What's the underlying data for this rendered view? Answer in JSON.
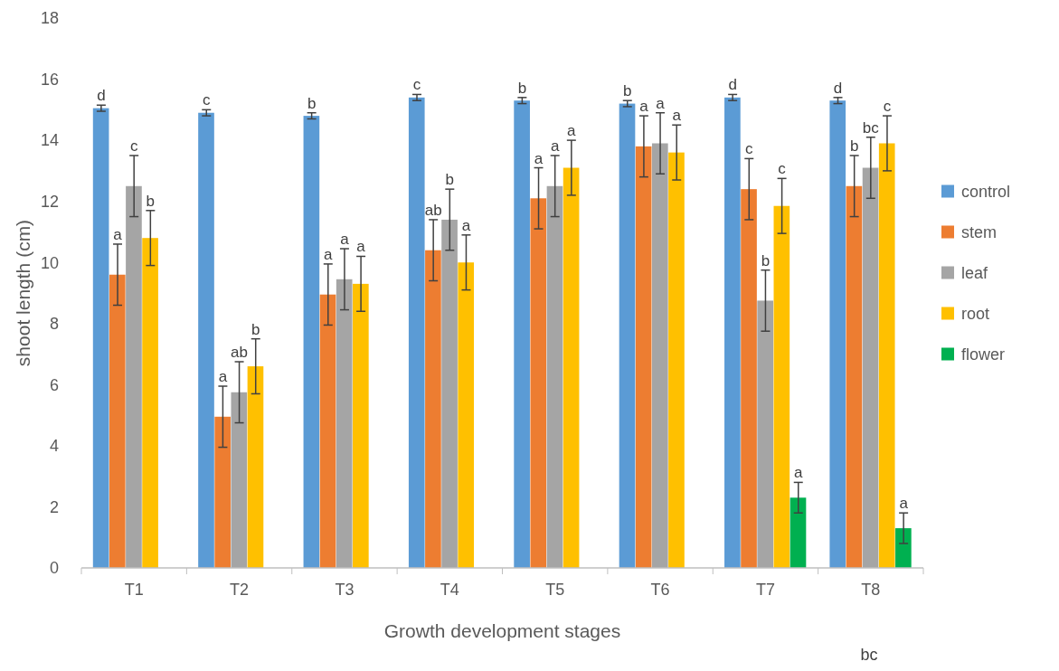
{
  "chart_data": {
    "type": "bar",
    "categories": [
      "T1",
      "T2",
      "T3",
      "T4",
      "T5",
      "T6",
      "T7",
      "T8"
    ],
    "xlabel": "Growth development stages",
    "ylabel": "shoot length (cm)",
    "ylim": [
      0,
      18
    ],
    "yticks": [
      0,
      2,
      4,
      6,
      8,
      10,
      12,
      14,
      16,
      18
    ],
    "grid": false,
    "legend": "right",
    "series": [
      {
        "name": "control",
        "color": "#5b9bd5",
        "values": [
          15.05,
          14.9,
          14.8,
          15.4,
          15.3,
          15.2,
          15.4,
          15.3
        ],
        "errors": [
          0.1,
          0.1,
          0.1,
          0.1,
          0.1,
          0.1,
          0.1,
          0.1
        ],
        "value_labels": [
          "d",
          "c",
          "b",
          "c",
          "b",
          "b",
          "d",
          "d"
        ]
      },
      {
        "name": "stem",
        "color": "#ed7d31",
        "values": [
          9.6,
          4.95,
          8.95,
          10.4,
          12.1,
          13.8,
          12.4,
          12.5
        ],
        "errors": [
          1.0,
          1.0,
          1.0,
          1.0,
          1.0,
          1.0,
          1.0,
          1.0
        ],
        "value_labels": [
          "a",
          "a",
          "a",
          "ab",
          "a",
          "a",
          "c",
          "b"
        ]
      },
      {
        "name": "leaf",
        "color": "#a5a5a5",
        "values": [
          12.5,
          5.75,
          9.45,
          11.4,
          12.5,
          13.9,
          8.75,
          13.1
        ],
        "errors": [
          1.0,
          1.0,
          1.0,
          1.0,
          1.0,
          1.0,
          1.0,
          1.0
        ],
        "value_labels": [
          "c",
          "ab",
          "a",
          "b",
          "a",
          "a",
          "b",
          "bc"
        ]
      },
      {
        "name": "root",
        "color": "#ffc000",
        "values": [
          10.8,
          6.6,
          9.3,
          10.0,
          13.1,
          13.6,
          11.85,
          13.9
        ],
        "errors": [
          0.9,
          0.9,
          0.9,
          0.9,
          0.9,
          0.9,
          0.9,
          0.9
        ],
        "value_labels": [
          "b",
          "b",
          "a",
          "a",
          "a",
          "a",
          "c",
          "c"
        ]
      },
      {
        "name": "flower",
        "color": "#00b050",
        "values": [
          null,
          null,
          null,
          null,
          null,
          null,
          2.3,
          1.3
        ],
        "errors": [
          null,
          null,
          null,
          null,
          null,
          null,
          0.5,
          0.5
        ],
        "value_labels": [
          null,
          null,
          null,
          null,
          null,
          null,
          "a",
          "a"
        ]
      }
    ],
    "annotations": [
      "bc"
    ]
  }
}
